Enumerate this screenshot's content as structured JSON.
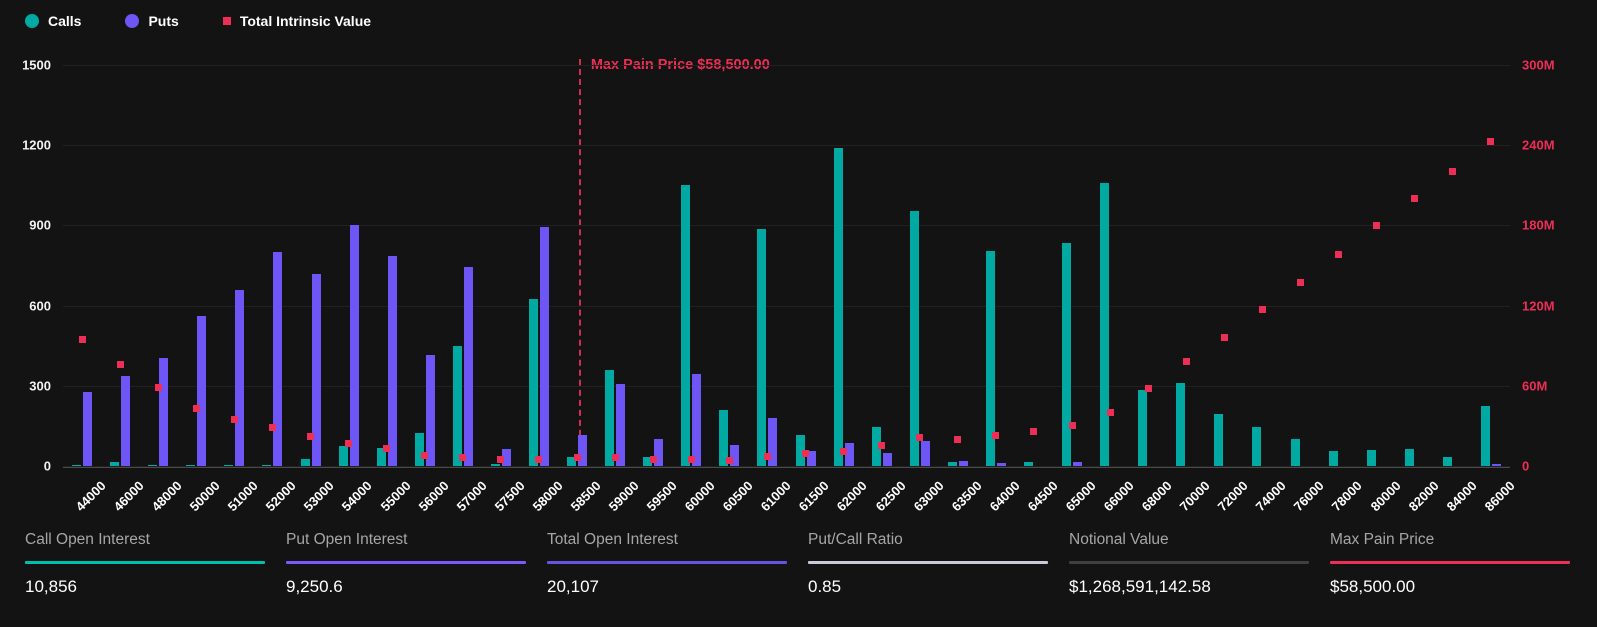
{
  "legend": [
    {
      "label": "Calls",
      "color": "#00A9A2",
      "shape": "circle"
    },
    {
      "label": "Puts",
      "color": "#6E55F5",
      "shape": "circle"
    },
    {
      "label": "Total Intrinsic Value",
      "color": "#ED2E55",
      "shape": "square"
    }
  ],
  "annotation": {
    "max_pain_label": "Max Pain Price $58,500.00",
    "max_pain_strike": "58500"
  },
  "chart_data": {
    "type": "bar",
    "categories": [
      "44000",
      "46000",
      "48000",
      "50000",
      "51000",
      "52000",
      "53000",
      "54000",
      "55000",
      "56000",
      "57000",
      "57500",
      "58000",
      "58500",
      "59000",
      "59500",
      "60000",
      "60500",
      "61000",
      "61500",
      "62000",
      "62500",
      "63000",
      "63500",
      "64000",
      "64500",
      "65000",
      "66000",
      "68000",
      "70000",
      "72000",
      "74000",
      "76000",
      "78000",
      "80000",
      "82000",
      "84000",
      "86000"
    ],
    "series": [
      {
        "name": "Calls",
        "type": "bar",
        "color": "#00A9A2",
        "axis": "left",
        "values": [
          2,
          15,
          2,
          2,
          2,
          3,
          25,
          75,
          68,
          125,
          450,
          8,
          625,
          35,
          360,
          35,
          1050,
          210,
          885,
          115,
          1190,
          145,
          955,
          16,
          805,
          16,
          835,
          1060,
          285,
          310,
          195,
          145,
          100,
          55,
          60,
          65,
          35,
          225
        ]
      },
      {
        "name": "Puts",
        "type": "bar",
        "color": "#6E55F5",
        "axis": "left",
        "values": [
          275,
          335,
          405,
          560,
          660,
          800,
          720,
          900,
          785,
          415,
          745,
          65,
          895,
          115,
          305,
          100,
          345,
          80,
          180,
          55,
          85,
          50,
          95,
          20,
          10,
          0,
          14,
          0,
          0,
          0,
          0,
          0,
          0,
          0,
          0,
          0,
          0,
          8
        ]
      },
      {
        "name": "Total Intrinsic Value",
        "type": "scatter",
        "color": "#ED2E55",
        "axis": "right",
        "unit": "M",
        "values": [
          95,
          76,
          59,
          43,
          35,
          29,
          22,
          17,
          13,
          8,
          6,
          5,
          5,
          6,
          6,
          5,
          5,
          4,
          7,
          9,
          11,
          15,
          21,
          20,
          23,
          26,
          30,
          40,
          58,
          78,
          96,
          117,
          137,
          158,
          180,
          200,
          220,
          243
        ]
      }
    ],
    "y_left": {
      "min": 0,
      "max": 1500,
      "ticks": [
        "0",
        "300",
        "600",
        "900",
        "1200",
        "1500"
      ]
    },
    "y_right": {
      "min": 0,
      "max": 300,
      "ticks": [
        "0",
        "60M",
        "120M",
        "180M",
        "240M",
        "300M"
      ]
    },
    "grid": true,
    "legend_position": "top-left",
    "max_pain_index": 13
  },
  "stats": [
    {
      "label": "Call Open Interest",
      "value": "10,856",
      "underline": "#00BFAE"
    },
    {
      "label": "Put Open Interest",
      "value": "9,250.6",
      "underline": "#7A5AF8"
    },
    {
      "label": "Total Open Interest",
      "value": "20,107",
      "underline": "#6455E0"
    },
    {
      "label": "Put/Call Ratio",
      "value": "0.85",
      "underline": "#C9CCD4"
    },
    {
      "label": "Notional Value",
      "value": "$1,268,591,142.58",
      "underline": "#3F3F3F"
    },
    {
      "label": "Max Pain Price",
      "value": "$58,500.00",
      "underline": "#ED2E55"
    }
  ]
}
